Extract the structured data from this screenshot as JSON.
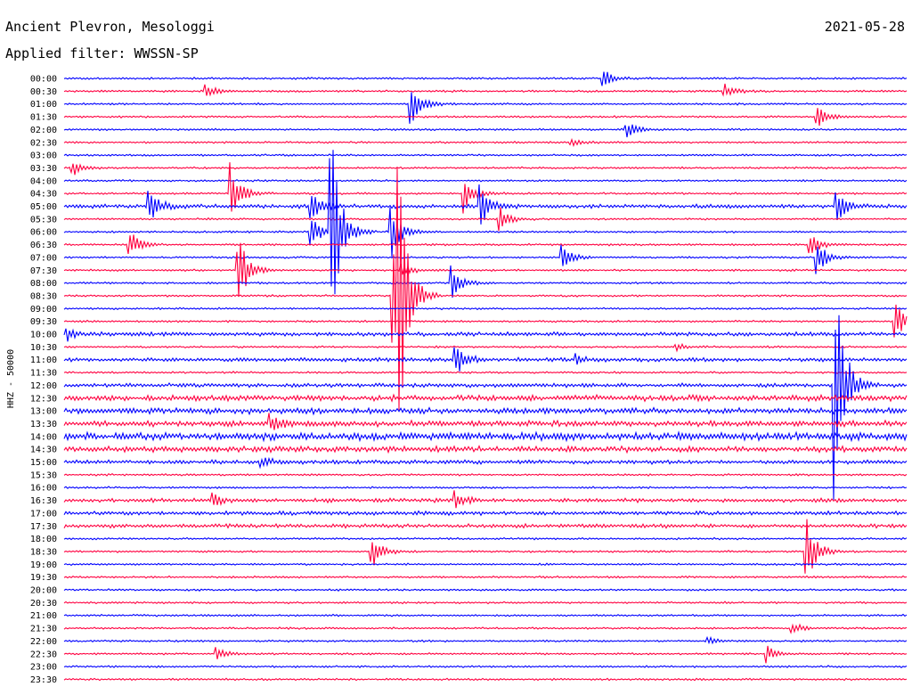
{
  "header": {
    "station": "Ancient Plevron, Mesologgi",
    "filter": "Applied filter: WWSSN-SP",
    "date": "2021-05-28"
  },
  "chart_data": {
    "type": "line",
    "title": "Ancient Plevron, Mesologgi",
    "subtitle": "Applied filter: WWSSN-SP",
    "ylabel": "HHZ - 50000",
    "xlabel": "",
    "grid": false,
    "legend": "none",
    "x_range_minutes": [
      0,
      30
    ],
    "row_labels": [
      "00:00",
      "00:30",
      "01:00",
      "01:30",
      "02:00",
      "02:30",
      "03:00",
      "03:30",
      "04:00",
      "04:30",
      "05:00",
      "05:30",
      "06:00",
      "06:30",
      "07:00",
      "07:30",
      "08:00",
      "08:30",
      "09:00",
      "09:30",
      "10:00",
      "10:30",
      "11:00",
      "11:30",
      "12:00",
      "12:30",
      "13:00",
      "13:30",
      "14:00",
      "14:30",
      "15:00",
      "15:30",
      "16:00",
      "16:30",
      "17:00",
      "17:30",
      "18:00",
      "18:30",
      "19:00",
      "19:30",
      "20:00",
      "20:30",
      "21:00",
      "21:30",
      "22:00",
      "22:30",
      "23:00",
      "23:30"
    ],
    "trace_colors": [
      "#0000ff",
      "#ff0040"
    ],
    "noise_level": [
      1,
      1,
      1,
      1,
      1,
      1,
      1,
      1,
      1,
      1,
      2,
      1,
      1,
      1,
      1,
      1,
      1,
      1,
      1,
      1,
      2,
      1,
      2,
      1,
      2,
      3,
      3,
      3,
      4,
      3,
      2,
      1,
      1,
      2,
      2,
      2,
      1,
      1,
      1,
      1,
      1,
      1,
      1,
      1,
      1,
      1,
      1,
      1
    ],
    "events": [
      {
        "row": 0,
        "minute": 19.2,
        "amplitude": 10
      },
      {
        "row": 1,
        "minute": 5.0,
        "amplitude": 10
      },
      {
        "row": 1,
        "minute": 23.5,
        "amplitude": 9
      },
      {
        "row": 2,
        "minute": 12.3,
        "amplitude": 30
      },
      {
        "row": 3,
        "minute": 26.8,
        "amplitude": 15
      },
      {
        "row": 4,
        "minute": 20.0,
        "amplitude": 10
      },
      {
        "row": 5,
        "minute": 18.0,
        "amplitude": 5
      },
      {
        "row": 7,
        "minute": 0.3,
        "amplitude": 10
      },
      {
        "row": 9,
        "minute": 5.9,
        "amplitude": 35
      },
      {
        "row": 9,
        "minute": 14.2,
        "amplitude": 25
      },
      {
        "row": 10,
        "minute": 3.0,
        "amplitude": 20
      },
      {
        "row": 10,
        "minute": 8.8,
        "amplitude": 15
      },
      {
        "row": 10,
        "minute": 14.8,
        "amplitude": 25
      },
      {
        "row": 10,
        "minute": 27.5,
        "amplitude": 20
      },
      {
        "row": 11,
        "minute": 15.5,
        "amplitude": 18
      },
      {
        "row": 12,
        "minute": 8.8,
        "amplitude": 20
      },
      {
        "row": 12,
        "minute": 9.5,
        "amplitude": 120
      },
      {
        "row": 12,
        "minute": 11.6,
        "amplitude": 35
      },
      {
        "row": 13,
        "minute": 2.3,
        "amplitude": 18
      },
      {
        "row": 13,
        "minute": 26.5,
        "amplitude": 15
      },
      {
        "row": 14,
        "minute": 17.7,
        "amplitude": 15
      },
      {
        "row": 14,
        "minute": 26.8,
        "amplitude": 20
      },
      {
        "row": 15,
        "minute": 6.2,
        "amplitude": 40
      },
      {
        "row": 15,
        "minute": 12.0,
        "amplitude": 8
      },
      {
        "row": 16,
        "minute": 13.8,
        "amplitude": 20
      },
      {
        "row": 17,
        "minute": 11.7,
        "amplitude": 90
      },
      {
        "row": 17,
        "minute": 11.9,
        "amplitude": 120
      },
      {
        "row": 19,
        "minute": 29.6,
        "amplitude": 22
      },
      {
        "row": 20,
        "minute": 0.1,
        "amplitude": 8
      },
      {
        "row": 21,
        "minute": 21.8,
        "amplitude": 5
      },
      {
        "row": 22,
        "minute": 13.9,
        "amplitude": 20
      },
      {
        "row": 22,
        "minute": 18.2,
        "amplitude": 6
      },
      {
        "row": 24,
        "minute": 27.4,
        "amplitude": 150
      },
      {
        "row": 27,
        "minute": 7.3,
        "amplitude": 12
      },
      {
        "row": 30,
        "minute": 7.0,
        "amplitude": 6
      },
      {
        "row": 33,
        "minute": 5.3,
        "amplitude": 8
      },
      {
        "row": 33,
        "minute": 13.9,
        "amplitude": 10
      },
      {
        "row": 37,
        "minute": 10.9,
        "amplitude": 25
      },
      {
        "row": 37,
        "minute": 26.4,
        "amplitude": 45
      },
      {
        "row": 43,
        "minute": 25.9,
        "amplitude": 7
      },
      {
        "row": 45,
        "minute": 5.4,
        "amplitude": 8
      },
      {
        "row": 45,
        "minute": 25.0,
        "amplitude": 10
      },
      {
        "row": 44,
        "minute": 22.9,
        "amplitude": 4
      }
    ]
  }
}
